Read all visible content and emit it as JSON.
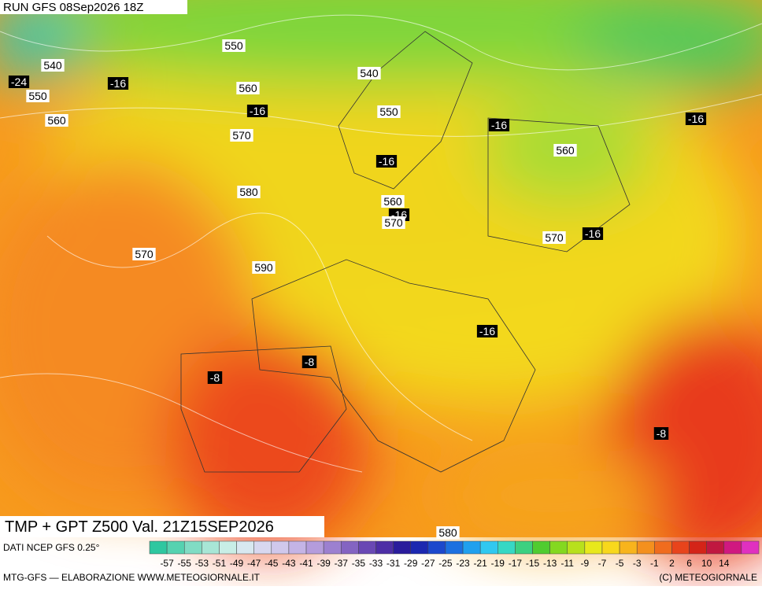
{
  "header": {
    "run": "RUN GFS 08Sep2026 18Z"
  },
  "map": {
    "labels": [
      550,
      540,
      -24,
      -16,
      550,
      560,
      -16,
      540,
      550,
      560,
      -16,
      -16,
      570,
      560,
      -16,
      580,
      560,
      -16,
      570,
      570,
      570,
      -16,
      590,
      -16,
      -8,
      -8,
      -8,
      580
    ]
  },
  "footer": {
    "title": "TMP + GPT Z500 Val. 21Z15SEP2026",
    "source": "DATI NCEP GFS 0.25°",
    "scale": [
      -57,
      -55,
      -53,
      -51,
      -49,
      -47,
      -45,
      -43,
      -41,
      -39,
      -37,
      -35,
      -33,
      -31,
      -29,
      -27,
      -25,
      -23,
      -21,
      -19,
      -17,
      -15,
      -13,
      -11,
      -9,
      -7,
      -5,
      -3,
      -1,
      2,
      6,
      10,
      14
    ],
    "credit": "MTG-GFS — ELABORAZIONE WWW.METEOGIORNALE.IT",
    "copyright": "(C) METEOGIORNALE"
  }
}
